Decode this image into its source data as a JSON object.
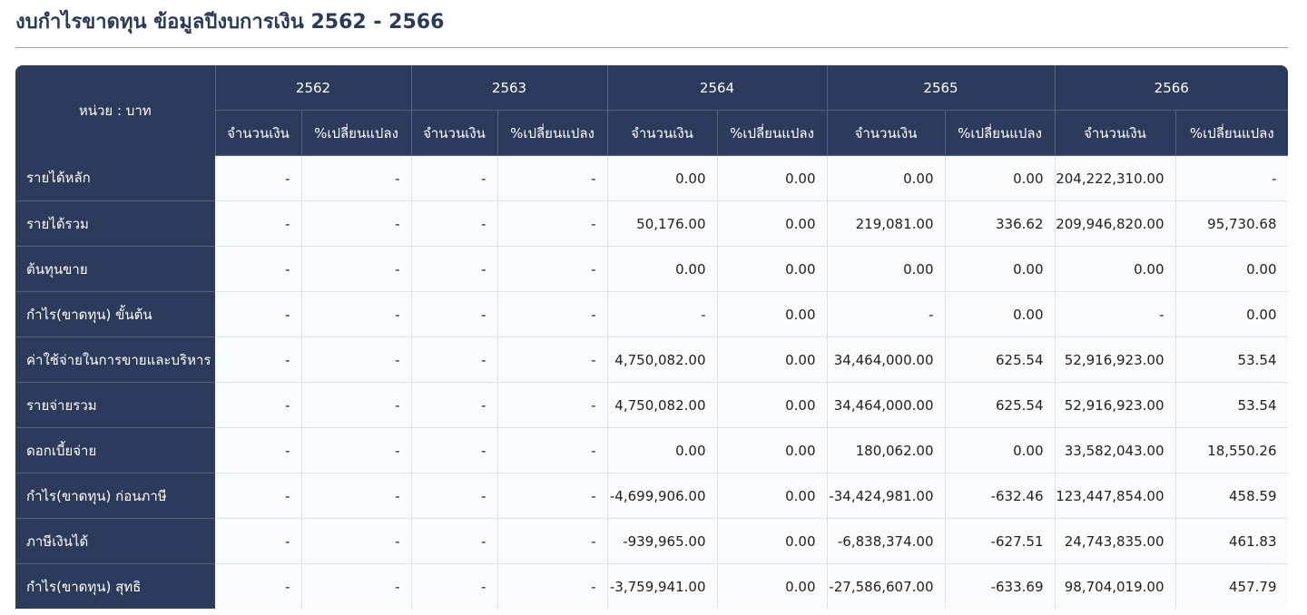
{
  "page": {
    "title": "งบกำไรขาดทุน ข้อมูลปีงบการเงิน 2562 - 2566"
  },
  "table": {
    "unit_label": "หน่วย : บาท",
    "years": [
      "2562",
      "2563",
      "2564",
      "2565",
      "2566"
    ],
    "amount_label": "จำนวนเงิน",
    "change_label": "%เปลี่ยนแปลง",
    "rows": [
      {
        "label": "รายได้หลัก",
        "cells": [
          "-",
          "-",
          "-",
          "-",
          "0.00",
          "0.00",
          "0.00",
          "0.00",
          "204,222,310.00",
          "-"
        ]
      },
      {
        "label": "รายได้รวม",
        "cells": [
          "-",
          "-",
          "-",
          "-",
          "50,176.00",
          "0.00",
          "219,081.00",
          "336.62",
          "209,946,820.00",
          "95,730.68"
        ]
      },
      {
        "label": "ต้นทุนขาย",
        "cells": [
          "-",
          "-",
          "-",
          "-",
          "0.00",
          "0.00",
          "0.00",
          "0.00",
          "0.00",
          "0.00"
        ]
      },
      {
        "label": "กำไร(ขาดทุน) ขั้นต้น",
        "cells": [
          "-",
          "-",
          "-",
          "-",
          "-",
          "0.00",
          "-",
          "0.00",
          "-",
          "0.00"
        ]
      },
      {
        "label": "ค่าใช้จ่ายในการขายและบริหาร",
        "cells": [
          "-",
          "-",
          "-",
          "-",
          "4,750,082.00",
          "0.00",
          "34,464,000.00",
          "625.54",
          "52,916,923.00",
          "53.54"
        ]
      },
      {
        "label": "รายจ่ายรวม",
        "cells": [
          "-",
          "-",
          "-",
          "-",
          "4,750,082.00",
          "0.00",
          "34,464,000.00",
          "625.54",
          "52,916,923.00",
          "53.54"
        ]
      },
      {
        "label": "ดอกเบี้ยจ่าย",
        "cells": [
          "-",
          "-",
          "-",
          "-",
          "0.00",
          "0.00",
          "180,062.00",
          "0.00",
          "33,582,043.00",
          "18,550.26"
        ]
      },
      {
        "label": "กำไร(ขาดทุน) ก่อนภาษี",
        "cells": [
          "-",
          "-",
          "-",
          "-",
          "-4,699,906.00",
          "0.00",
          "-34,424,981.00",
          "-632.46",
          "123,447,854.00",
          "458.59"
        ]
      },
      {
        "label": "ภาษีเงินได้",
        "cells": [
          "-",
          "-",
          "-",
          "-",
          "-939,965.00",
          "0.00",
          "-6,838,374.00",
          "-627.51",
          "24,743,835.00",
          "461.83"
        ]
      },
      {
        "label": "กำไร(ขาดทุน) สุทธิ",
        "cells": [
          "-",
          "-",
          "-",
          "-",
          "-3,759,941.00",
          "0.00",
          "-27,586,607.00",
          "-633.69",
          "98,704,019.00",
          "457.79"
        ]
      }
    ]
  }
}
